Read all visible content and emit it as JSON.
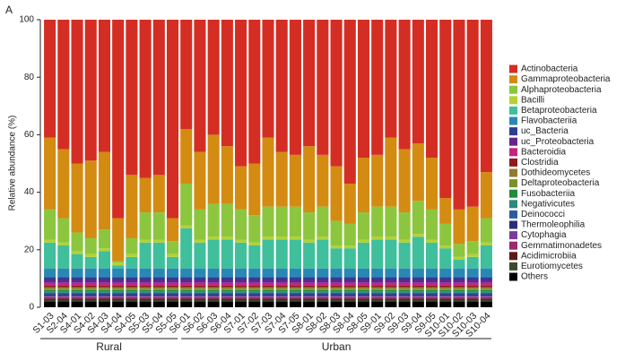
{
  "chart_data": {
    "type": "stacked_bar",
    "panel_label": "A",
    "y_label": "Relative abundance (%)",
    "ylim": [
      0,
      100
    ],
    "yticks": [
      0,
      20,
      40,
      60,
      80,
      100
    ],
    "categories": [
      "S1-03",
      "S2-04",
      "S4-01",
      "S4-02",
      "S4-03",
      "S4-04",
      "S4-05",
      "S5-03",
      "S5-04",
      "S5-05",
      "S6-01",
      "S6-02",
      "S6-03",
      "S6-04",
      "S7-01",
      "S7-02",
      "S7-03",
      "S7-04",
      "S7-05",
      "S8-01",
      "S8-02",
      "S8-03",
      "S8-04",
      "S8-05",
      "S9-01",
      "S9-02",
      "S9-03",
      "S9-04",
      "S9-05",
      "S10-01",
      "S10-02",
      "S10-03",
      "S10-04"
    ],
    "groups": [
      {
        "name": "Rural",
        "count": 10
      },
      {
        "name": "Urban",
        "count": 23
      }
    ],
    "series": [
      {
        "name": "Actinobacteria",
        "color": "#d42e24",
        "values": [
          41,
          45,
          50,
          49,
          46,
          69,
          54,
          55,
          54,
          69,
          38,
          46,
          40,
          44,
          51,
          50,
          41,
          46,
          47,
          44,
          47,
          51,
          57,
          48,
          47,
          41,
          45,
          43,
          48,
          62,
          66,
          65,
          53
        ]
      },
      {
        "name": "Gammaproteobacteria",
        "color": "#d38b12",
        "values": [
          25,
          24,
          24,
          27,
          27,
          15,
          22,
          12,
          13,
          8,
          19,
          20,
          24,
          20,
          15,
          18,
          24,
          19,
          18,
          23,
          18,
          19,
          14,
          19,
          18,
          24,
          22,
          20,
          18,
          9,
          12,
          12,
          16
        ]
      },
      {
        "name": "Alphaproteobacteria",
        "color": "#8cc63e",
        "values": [
          10.5,
          8.5,
          6.5,
          5.5,
          6.5,
          0.5,
          5.5,
          9.5,
          9.5,
          4.5,
          14.5,
          10.5,
          11.5,
          11.5,
          10.5,
          9.5,
          10.5,
          10.5,
          10.5,
          9.5,
          10.5,
          8.5,
          7.5,
          9.5,
          10.5,
          10.5,
          9.5,
          11.5,
          10.5,
          7.5,
          4.5,
          4.5,
          8.5
        ]
      },
      {
        "name": "Bacilli",
        "color": "#b3d234",
        "values": [
          1,
          1,
          1,
          1,
          1,
          1,
          1,
          1,
          1,
          1,
          1,
          1,
          1,
          1,
          1,
          1,
          1,
          1,
          1,
          1,
          1,
          1,
          1,
          1,
          1,
          1,
          1,
          1,
          1,
          1,
          1,
          1,
          1
        ]
      },
      {
        "name": "Betaproteobacteria",
        "color": "#3fbf9b",
        "values": [
          9,
          8,
          5,
          4,
          6,
          1,
          4,
          9,
          9,
          4,
          14,
          9,
          10,
          10,
          9,
          8,
          10,
          10,
          10,
          9,
          10,
          7,
          7,
          9,
          10,
          10,
          9,
          11,
          9,
          7,
          3,
          4,
          8
        ]
      },
      {
        "name": "Flavobacteriia",
        "color": "#2a87b5",
        "values": [
          3,
          3,
          3,
          3,
          3,
          3,
          3,
          3,
          3,
          3,
          3,
          3,
          3,
          3,
          3,
          3,
          3,
          3,
          3,
          3,
          3,
          3,
          3,
          3,
          3,
          3,
          3,
          3,
          3,
          3,
          3,
          3,
          3
        ]
      },
      {
        "name": "uc_Bacteria",
        "color": "#2d3e91",
        "values": [
          1,
          1,
          1,
          1,
          1,
          1,
          1,
          1,
          1,
          1,
          1,
          1,
          1,
          1,
          1,
          1,
          1,
          1,
          1,
          1,
          1,
          1,
          1,
          1,
          1,
          1,
          1,
          1,
          1,
          1,
          1,
          1,
          1
        ]
      },
      {
        "name": "uc_Proteobacteria",
        "color": "#6b2291",
        "values": [
          1,
          1,
          1,
          1,
          1,
          1,
          1,
          1,
          1,
          1,
          1,
          1,
          1,
          1,
          1,
          1,
          1,
          1,
          1,
          1,
          1,
          1,
          1,
          1,
          1,
          1,
          1,
          1,
          1,
          1,
          1,
          1,
          1
        ]
      },
      {
        "name": "Bacteroidia",
        "color": "#c4237f",
        "values": [
          1,
          1,
          1,
          1,
          1,
          1,
          1,
          1,
          1,
          1,
          1,
          1,
          1,
          1,
          1,
          1,
          1,
          1,
          1,
          1,
          1,
          1,
          1,
          1,
          1,
          1,
          1,
          1,
          1,
          1,
          1,
          1,
          1
        ]
      },
      {
        "name": "Clostridia",
        "color": "#8e1b1e",
        "values": [
          0.5,
          0.5,
          0.5,
          0.5,
          0.5,
          0.5,
          0.5,
          0.5,
          0.5,
          0.5,
          0.5,
          0.5,
          0.5,
          0.5,
          0.5,
          0.5,
          0.5,
          0.5,
          0.5,
          0.5,
          0.5,
          0.5,
          0.5,
          0.5,
          0.5,
          0.5,
          0.5,
          0.5,
          0.5,
          0.5,
          0.5,
          0.5,
          0.5
        ]
      },
      {
        "name": "Dothideomycetes",
        "color": "#8f7b2c",
        "values": [
          0.5,
          0.5,
          0.5,
          0.5,
          0.5,
          0.5,
          0.5,
          0.5,
          0.5,
          0.5,
          0.5,
          0.5,
          0.5,
          0.5,
          0.5,
          0.5,
          0.5,
          0.5,
          0.5,
          0.5,
          0.5,
          0.5,
          0.5,
          0.5,
          0.5,
          0.5,
          0.5,
          0.5,
          0.5,
          0.5,
          0.5,
          0.5,
          0.5
        ]
      },
      {
        "name": "Deltaproteobacteria",
        "color": "#7c8f2c",
        "values": [
          0.5,
          0.5,
          0.5,
          0.5,
          0.5,
          0.5,
          0.5,
          0.5,
          0.5,
          0.5,
          0.5,
          0.5,
          0.5,
          0.5,
          0.5,
          0.5,
          0.5,
          0.5,
          0.5,
          0.5,
          0.5,
          0.5,
          0.5,
          0.5,
          0.5,
          0.5,
          0.5,
          0.5,
          0.5,
          0.5,
          0.5,
          0.5,
          0.5
        ]
      },
      {
        "name": "Fusobacteriia",
        "color": "#1f8b3b",
        "values": [
          0.5,
          0.5,
          0.5,
          0.5,
          0.5,
          0.5,
          0.5,
          0.5,
          0.5,
          0.5,
          0.5,
          0.5,
          0.5,
          0.5,
          0.5,
          0.5,
          0.5,
          0.5,
          0.5,
          0.5,
          0.5,
          0.5,
          0.5,
          0.5,
          0.5,
          0.5,
          0.5,
          0.5,
          0.5,
          0.5,
          0.5,
          0.5,
          0.5
        ]
      },
      {
        "name": "Negativicutes",
        "color": "#2a8a7c",
        "values": [
          0.5,
          0.5,
          0.5,
          0.5,
          0.5,
          0.5,
          0.5,
          0.5,
          0.5,
          0.5,
          0.5,
          0.5,
          0.5,
          0.5,
          0.5,
          0.5,
          0.5,
          0.5,
          0.5,
          0.5,
          0.5,
          0.5,
          0.5,
          0.5,
          0.5,
          0.5,
          0.5,
          0.5,
          0.5,
          0.5,
          0.5,
          0.5,
          0.5
        ]
      },
      {
        "name": "Deinococci",
        "color": "#2b5ca3",
        "values": [
          0.5,
          0.5,
          0.5,
          0.5,
          0.5,
          0.5,
          0.5,
          0.5,
          0.5,
          0.5,
          0.5,
          0.5,
          0.5,
          0.5,
          0.5,
          0.5,
          0.5,
          0.5,
          0.5,
          0.5,
          0.5,
          0.5,
          0.5,
          0.5,
          0.5,
          0.5,
          0.5,
          0.5,
          0.5,
          0.5,
          0.5,
          0.5,
          0.5
        ]
      },
      {
        "name": "Thermoleophilia",
        "color": "#2b2b7c",
        "values": [
          0.5,
          0.5,
          0.5,
          0.5,
          0.5,
          0.5,
          0.5,
          0.5,
          0.5,
          0.5,
          0.5,
          0.5,
          0.5,
          0.5,
          0.5,
          0.5,
          0.5,
          0.5,
          0.5,
          0.5,
          0.5,
          0.5,
          0.5,
          0.5,
          0.5,
          0.5,
          0.5,
          0.5,
          0.5,
          0.5,
          0.5,
          0.5,
          0.5
        ]
      },
      {
        "name": "Cytophagia",
        "color": "#7b3b9b",
        "values": [
          0.5,
          0.5,
          0.5,
          0.5,
          0.5,
          0.5,
          0.5,
          0.5,
          0.5,
          0.5,
          0.5,
          0.5,
          0.5,
          0.5,
          0.5,
          0.5,
          0.5,
          0.5,
          0.5,
          0.5,
          0.5,
          0.5,
          0.5,
          0.5,
          0.5,
          0.5,
          0.5,
          0.5,
          0.5,
          0.5,
          0.5,
          0.5,
          0.5
        ]
      },
      {
        "name": "Gemmatimonadetes",
        "color": "#9b2b6c",
        "values": [
          0.5,
          0.5,
          0.5,
          0.5,
          0.5,
          0.5,
          0.5,
          0.5,
          0.5,
          0.5,
          0.5,
          0.5,
          0.5,
          0.5,
          0.5,
          0.5,
          0.5,
          0.5,
          0.5,
          0.5,
          0.5,
          0.5,
          0.5,
          0.5,
          0.5,
          0.5,
          0.5,
          0.5,
          0.5,
          0.5,
          0.5,
          0.5,
          0.5
        ]
      },
      {
        "name": "Acidimicrobiia",
        "color": "#5a1a1a",
        "values": [
          0.5,
          0.5,
          0.5,
          0.5,
          0.5,
          0.5,
          0.5,
          0.5,
          0.5,
          0.5,
          0.5,
          0.5,
          0.5,
          0.5,
          0.5,
          0.5,
          0.5,
          0.5,
          0.5,
          0.5,
          0.5,
          0.5,
          0.5,
          0.5,
          0.5,
          0.5,
          0.5,
          0.5,
          0.5,
          0.5,
          0.5,
          0.5,
          0.5
        ]
      },
      {
        "name": "Eurotiomycetes",
        "color": "#3b4a2b",
        "values": [
          0.5,
          0.5,
          0.5,
          0.5,
          0.5,
          0.5,
          0.5,
          0.5,
          0.5,
          0.5,
          0.5,
          0.5,
          0.5,
          0.5,
          0.5,
          0.5,
          0.5,
          0.5,
          0.5,
          0.5,
          0.5,
          0.5,
          0.5,
          0.5,
          0.5,
          0.5,
          0.5,
          0.5,
          0.5,
          0.5,
          0.5,
          0.5,
          0.5
        ]
      },
      {
        "name": "Others",
        "color": "#000000",
        "values": [
          2,
          2,
          2,
          2,
          2,
          2,
          2,
          2,
          2,
          2,
          2,
          2,
          2,
          2,
          2,
          2,
          2,
          2,
          2,
          2,
          2,
          2,
          2,
          2,
          2,
          2,
          2,
          2,
          2,
          2,
          2,
          2,
          2
        ]
      }
    ]
  }
}
